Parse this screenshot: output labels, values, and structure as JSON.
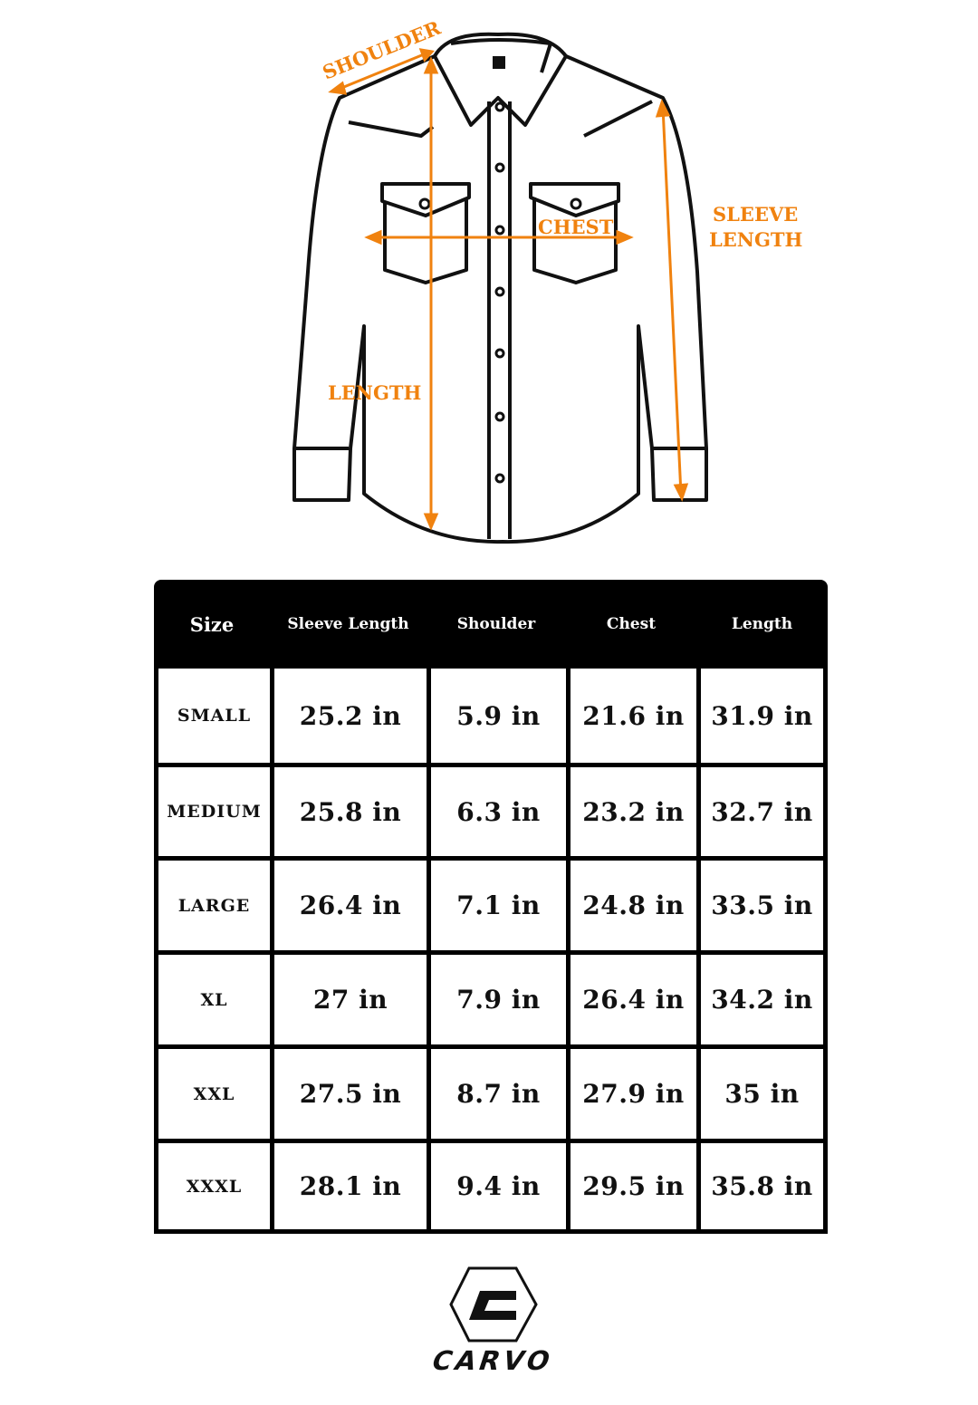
{
  "diagram": {
    "labels": {
      "shoulder": "SHOULDER",
      "chest": "CHEST",
      "sleeve_length_line1": "SLEEVE",
      "sleeve_length_line2": "LENGTH",
      "length": "LENGTH"
    },
    "accent_color": "#f0820f"
  },
  "table": {
    "headers": [
      "Size",
      "Sleeve Length",
      "Shoulder",
      "Chest",
      "Length"
    ],
    "rows": [
      [
        "SMALL",
        "25.2 in",
        "5.9 in",
        "21.6 in",
        "31.9 in"
      ],
      [
        "MEDIUM",
        "25.8 in",
        "6.3 in",
        "23.2 in",
        "32.7 in"
      ],
      [
        "LARGE",
        "26.4 in",
        "7.1 in",
        "24.8 in",
        "33.5 in"
      ],
      [
        "XL",
        "27 in",
        "7.9 in",
        "26.4 in",
        "34.2 in"
      ],
      [
        "XXL",
        "27.5 in",
        "8.7 in",
        "27.9 in",
        "35 in"
      ],
      [
        "XXXL",
        "28.1 in",
        "9.4 in",
        "29.5 in",
        "35.8 in"
      ]
    ]
  },
  "brand": {
    "name": "CARVO"
  }
}
